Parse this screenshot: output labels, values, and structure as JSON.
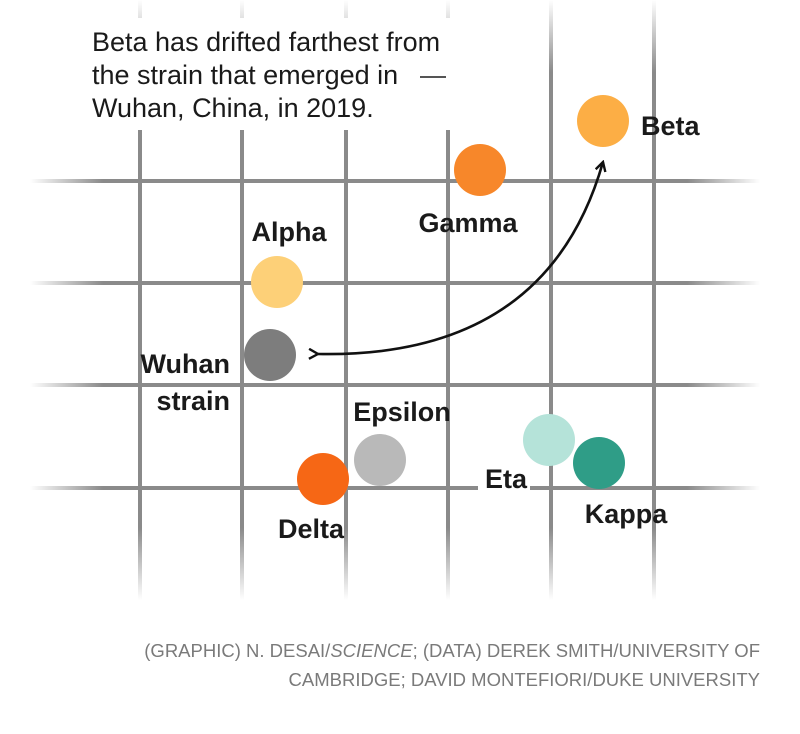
{
  "annotation": {
    "lines": [
      "Beta has drifted farthest from",
      "the strain that emerged in",
      "Wuhan, China, in 2019."
    ]
  },
  "strains": [
    {
      "id": "beta",
      "label": "Beta",
      "color": "#fcae45"
    },
    {
      "id": "gamma",
      "label": "Gamma",
      "color": "#f7872a"
    },
    {
      "id": "alpha",
      "label": "Alpha",
      "color": "#fdd078"
    },
    {
      "id": "wuhan",
      "label_lines": [
        "Wuhan",
        "strain"
      ],
      "color": "#7d7d7d"
    },
    {
      "id": "epsilon",
      "label": "Epsilon",
      "color": "#b9b9b9"
    },
    {
      "id": "delta",
      "label": "Delta",
      "color": "#f66715"
    },
    {
      "id": "eta",
      "label": "Eta",
      "color": "#b5e3d9"
    },
    {
      "id": "kappa",
      "label": "Kappa",
      "color": "#2f9d87"
    }
  ],
  "credit": {
    "line1_pre": "(GRAPHIC) N. DESAI/",
    "line1_italic": "SCIENCE",
    "line1_post": "; (DATA) DEREK SMITH/UNIVERSITY OF",
    "line2": "CAMBRIDGE; DAVID MONTEFIORI/DUKE UNIVERSITY"
  }
}
